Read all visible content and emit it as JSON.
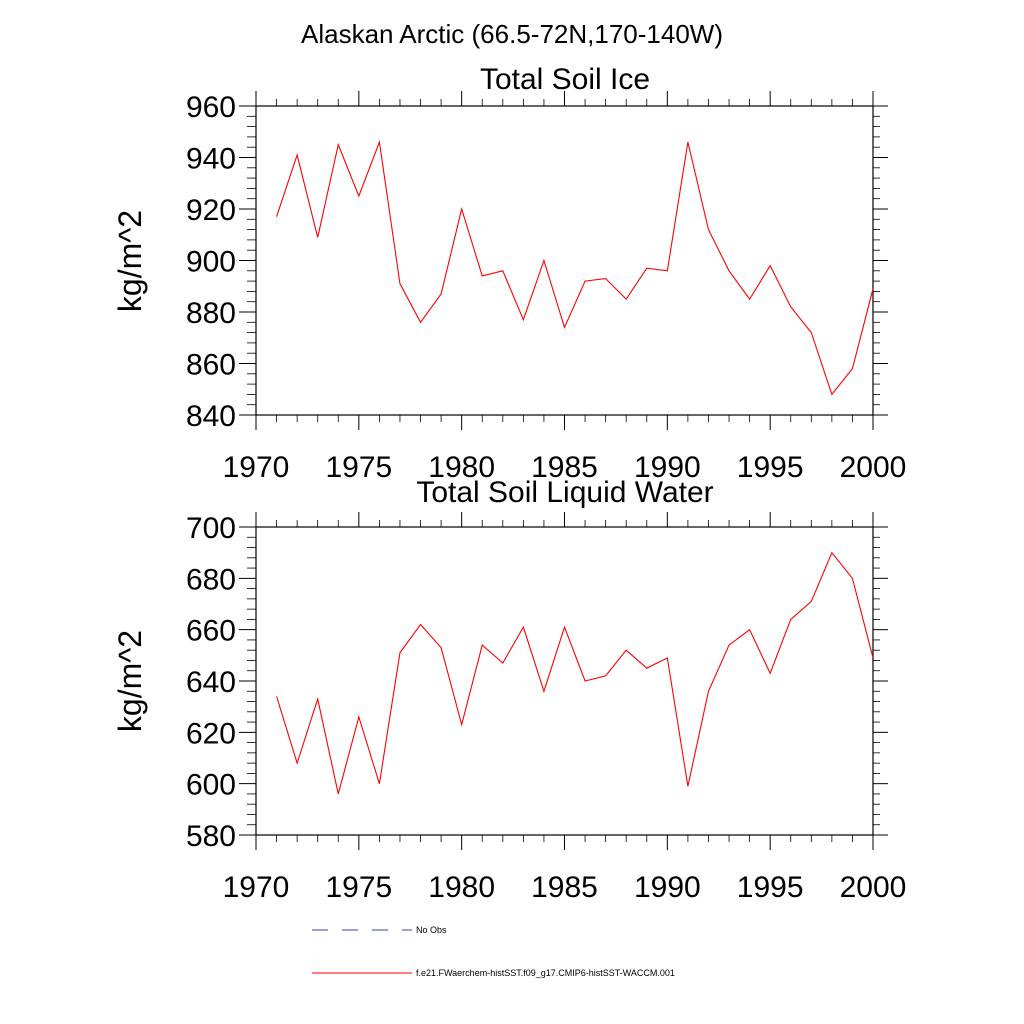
{
  "figure_title": "Alaskan Arctic (66.5-72N,170-140W)",
  "colors": {
    "model_line": "#ff0000",
    "obs_line": "#3b4aa0",
    "axis": "#000000"
  },
  "legend": {
    "placement": "bottom",
    "entries": [
      {
        "label": "No Obs",
        "style": "dashed",
        "color": "#3b4aa0"
      },
      {
        "label": "f.e21.FWaerchem-histSST.f09_g17.CMIP6-histSST-WACCM.001",
        "style": "solid",
        "color": "#ff0000"
      }
    ]
  },
  "chart_data": [
    {
      "type": "line",
      "title": "Total Soil Ice",
      "xlabel": "",
      "ylabel": "kg/m^2",
      "xlim": [
        1970,
        2000
      ],
      "ylim": [
        840,
        960
      ],
      "xticks": [
        1970,
        1975,
        1980,
        1985,
        1990,
        1995,
        2000
      ],
      "yticks": [
        840,
        860,
        880,
        900,
        920,
        940,
        960
      ],
      "grid": false,
      "x": [
        1971,
        1972,
        1973,
        1974,
        1975,
        1976,
        1977,
        1978,
        1979,
        1980,
        1981,
        1982,
        1983,
        1984,
        1985,
        1986,
        1987,
        1988,
        1989,
        1990,
        1991,
        1992,
        1993,
        1994,
        1995,
        1996,
        1997,
        1998,
        1999,
        2000
      ],
      "series": [
        {
          "name": "f.e21.FWaerchem-histSST.f09_g17.CMIP6-histSST-WACCM.001",
          "values": [
            917,
            941,
            909,
            945,
            925,
            946,
            891,
            876,
            887,
            920,
            894,
            896,
            877,
            900,
            874,
            892,
            893,
            885,
            897,
            896,
            946,
            912,
            896,
            885,
            898,
            882,
            872,
            848,
            858,
            889
          ]
        }
      ]
    },
    {
      "type": "line",
      "title": "Total Soil Liquid Water",
      "xlabel": "",
      "ylabel": "kg/m^2",
      "xlim": [
        1970,
        2000
      ],
      "ylim": [
        580,
        700
      ],
      "xticks": [
        1970,
        1975,
        1980,
        1985,
        1990,
        1995,
        2000
      ],
      "yticks": [
        580,
        600,
        620,
        640,
        660,
        680,
        700
      ],
      "grid": false,
      "x": [
        1971,
        1972,
        1973,
        1974,
        1975,
        1976,
        1977,
        1978,
        1979,
        1980,
        1981,
        1982,
        1983,
        1984,
        1985,
        1986,
        1987,
        1988,
        1989,
        1990,
        1991,
        1992,
        1993,
        1994,
        1995,
        1996,
        1997,
        1998,
        1999,
        2000
      ],
      "series": [
        {
          "name": "f.e21.FWaerchem-histSST.f09_g17.CMIP6-histSST-WACCM.001",
          "values": [
            634,
            608,
            633,
            596,
            626,
            600,
            651,
            662,
            653,
            623,
            654,
            647,
            661,
            636,
            661,
            640,
            642,
            652,
            645,
            649,
            599,
            636,
            654,
            660,
            643,
            664,
            671,
            690,
            680,
            649
          ]
        }
      ]
    }
  ]
}
